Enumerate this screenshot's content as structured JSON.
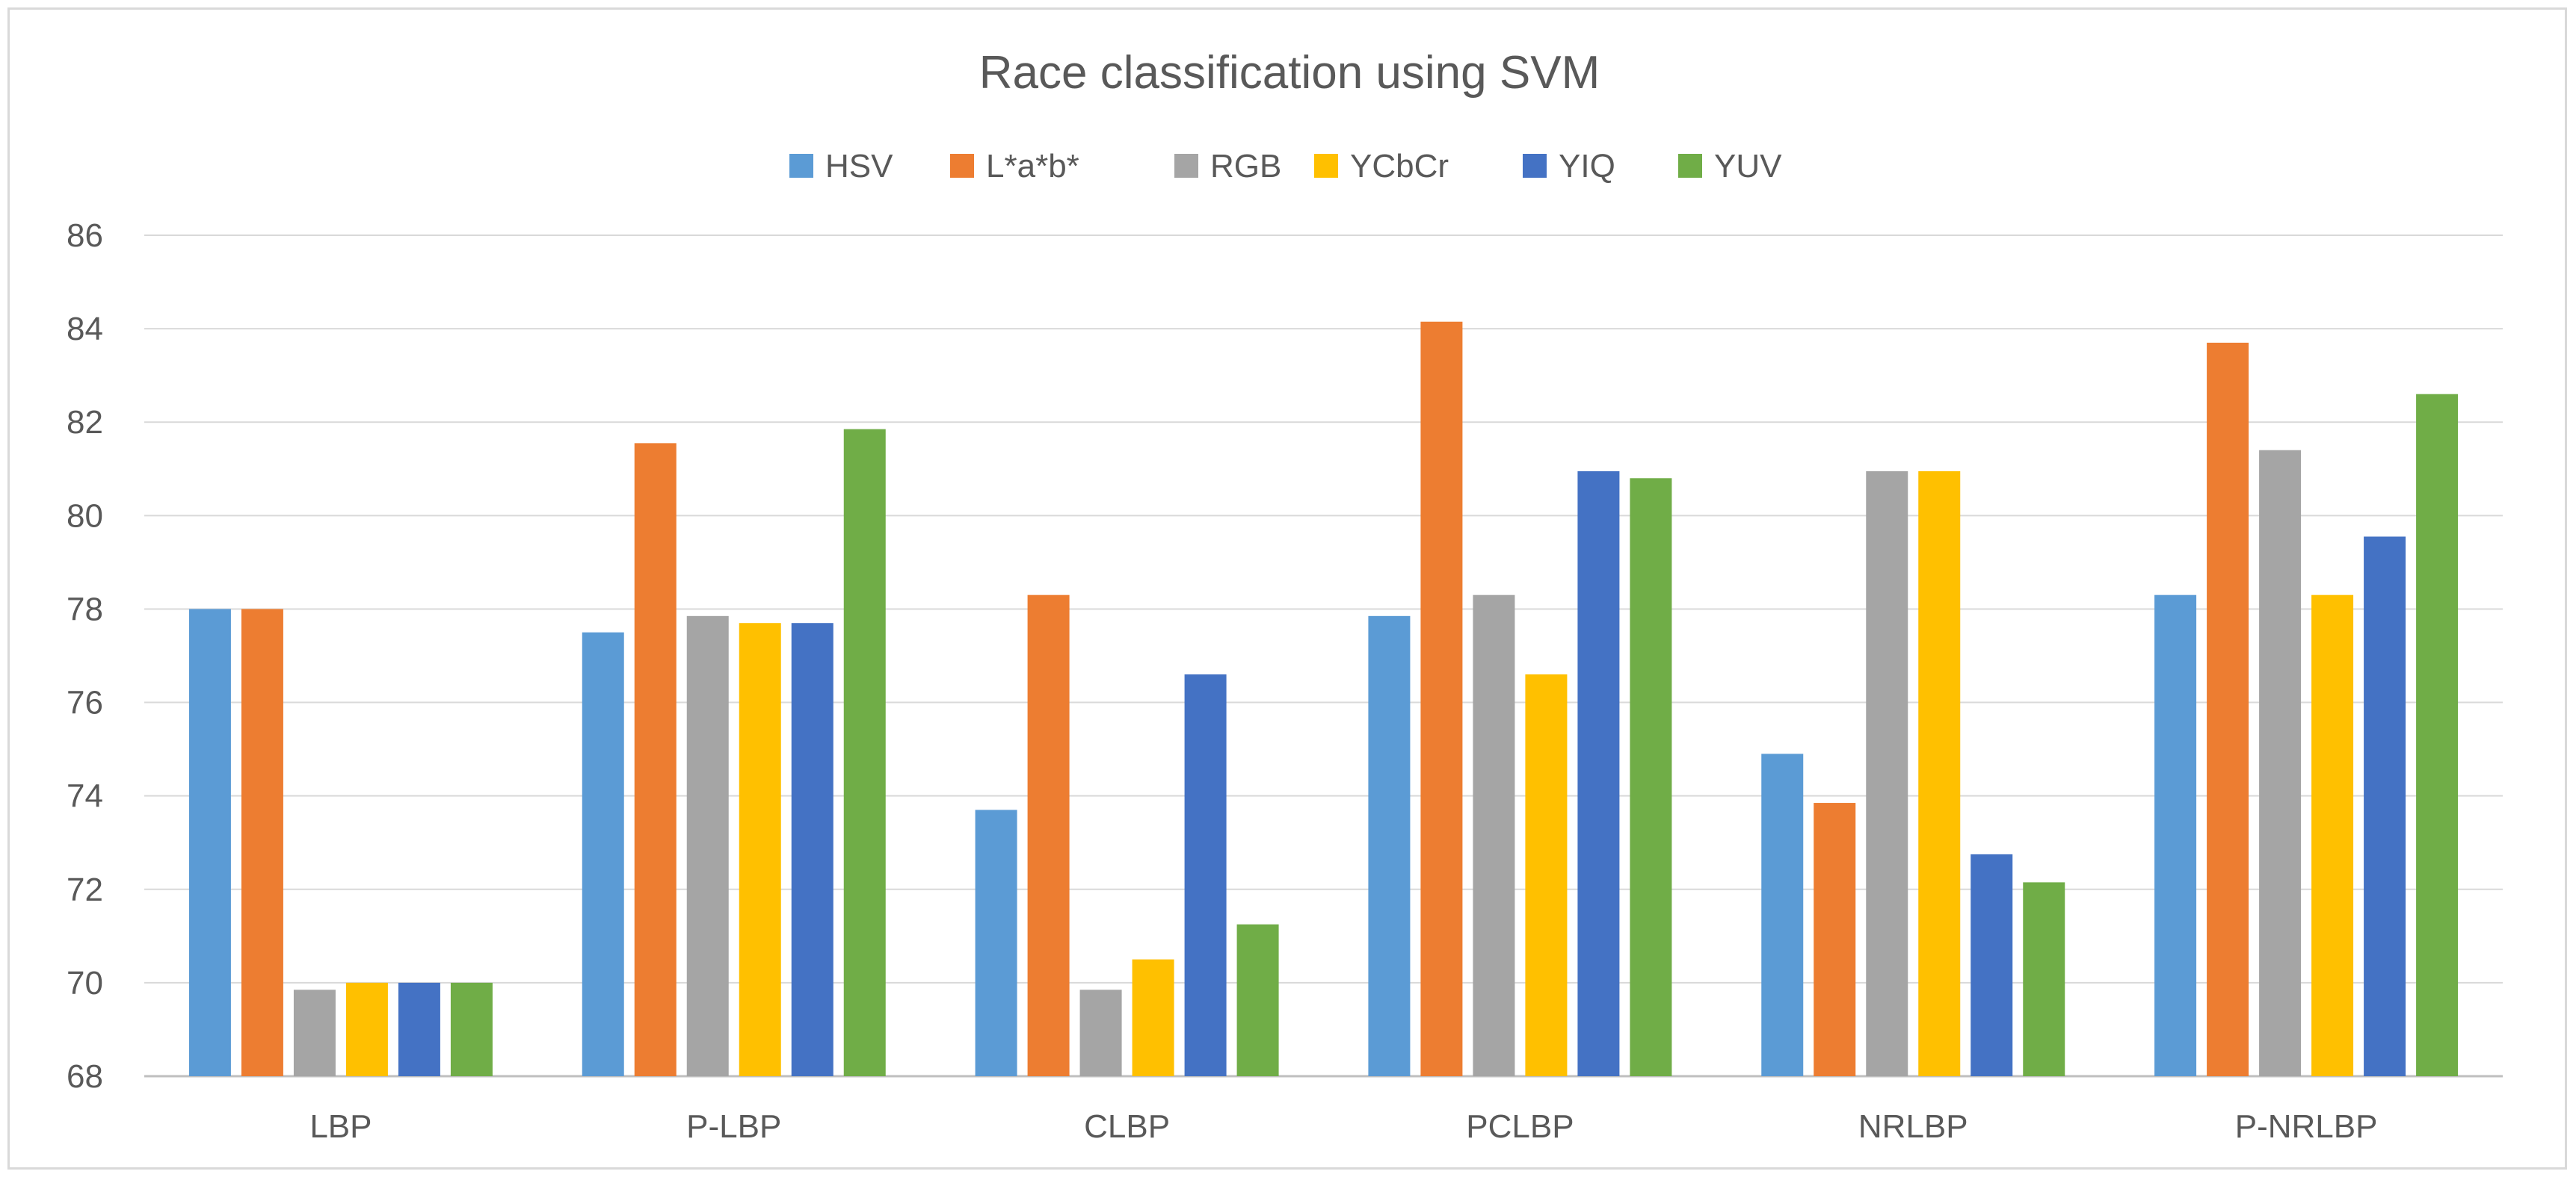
{
  "chart_data": {
    "type": "bar",
    "title": "Race classification using SVM",
    "xlabel": "",
    "ylabel": "",
    "categories": [
      "LBP",
      "P-LBP",
      "CLBP",
      "PCLBP",
      "NRLBP",
      "P-NRLBP"
    ],
    "ylim": [
      68,
      86
    ],
    "yticks": [
      68,
      70,
      72,
      74,
      76,
      78,
      80,
      82,
      84,
      86
    ],
    "grid": true,
    "legend_position": "top-center",
    "series": [
      {
        "name": "HSV",
        "color": "#5b9bd5",
        "values": [
          78.0,
          77.5,
          73.7,
          77.85,
          74.9,
          78.3
        ]
      },
      {
        "name": "L*a*b*",
        "color": "#ed7d31",
        "values": [
          78.0,
          81.55,
          78.3,
          84.15,
          73.85,
          83.7
        ]
      },
      {
        "name": "RGB",
        "color": "#a5a5a5",
        "values": [
          69.85,
          77.85,
          69.85,
          78.3,
          80.95,
          81.4
        ]
      },
      {
        "name": "YCbCr",
        "color": "#ffc000",
        "values": [
          70.0,
          77.7,
          70.5,
          76.6,
          80.95,
          78.3
        ]
      },
      {
        "name": "YIQ",
        "color": "#4472c4",
        "values": [
          70.0,
          77.7,
          76.6,
          80.95,
          72.75,
          79.55
        ]
      },
      {
        "name": "YUV",
        "color": "#70ad47",
        "values": [
          70.0,
          81.85,
          71.25,
          80.8,
          72.15,
          82.6
        ]
      }
    ]
  }
}
